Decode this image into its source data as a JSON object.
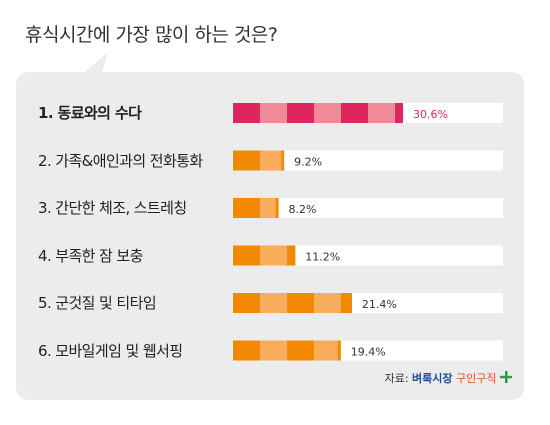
{
  "title": "휴식시간에 가장 많이 하는 것은?",
  "source": {
    "prefix": "자료:",
    "brand": "벼룩시장",
    "brand_sub": "구인구직"
  },
  "colors": {
    "highlight_dark": "#e0245e",
    "highlight_light": "#f08a98",
    "normal_dark": "#f28a00",
    "normal_light": "#f8ad5c",
    "highlight_text": "#e0245e",
    "card_bg": "#ececec"
  },
  "chart_data": {
    "type": "bar",
    "orientation": "horizontal",
    "title": "휴식시간에 가장 많이 하는 것은?",
    "xlim": [
      0,
      30.6
    ],
    "categories": [
      "1. 동료와의 수다",
      "2. 가족&애인과의 전화통화",
      "3. 간단한 체조, 스트레칭",
      "4. 부족한 잠 보충",
      "5. 군것질 및 티타임",
      "6. 모바일게임 및 웹서핑"
    ],
    "values": [
      30.6,
      9.2,
      8.2,
      11.2,
      21.4,
      19.4
    ],
    "value_labels": [
      "30.6%",
      "9.2%",
      "8.2%",
      "11.2%",
      "21.4%",
      "19.4%"
    ],
    "highlight_index": 0
  }
}
